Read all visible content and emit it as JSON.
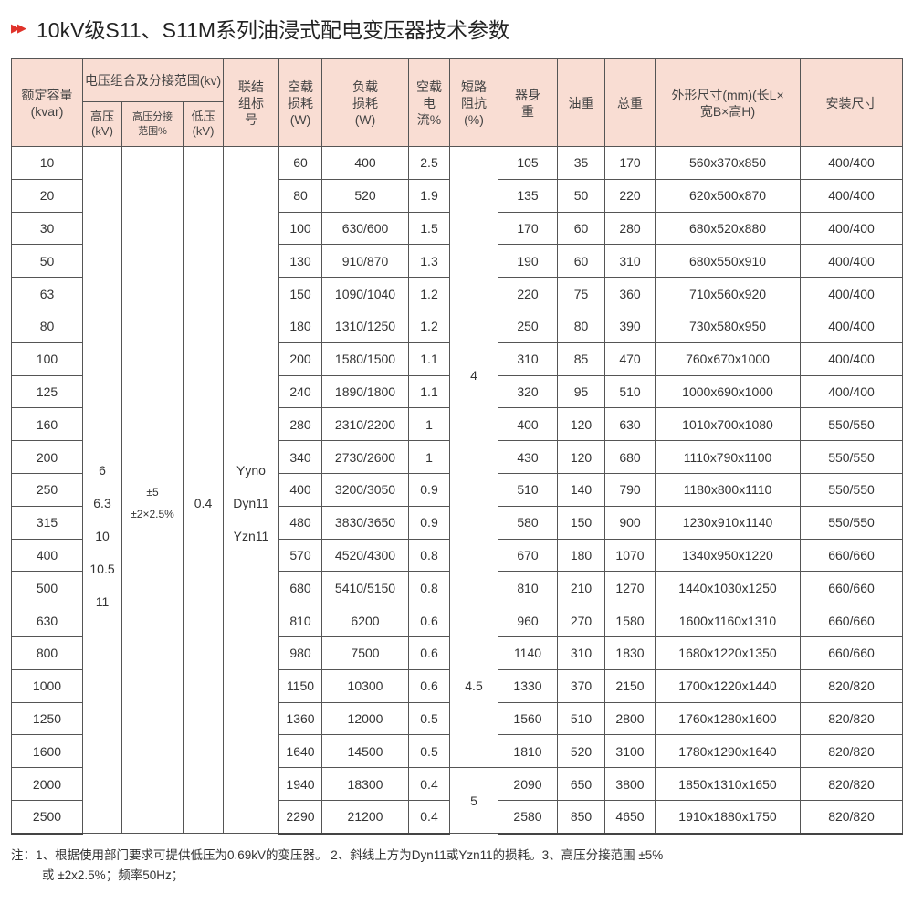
{
  "title": "10kV级S11、S11M系列油浸式配电变压器技术参数",
  "title_icon": "double-arrow-right-icon",
  "colors": {
    "header_bg": "#f9ddd3",
    "accent": "#e0322a"
  },
  "headers": {
    "capacity": "额定容量(kvar)",
    "voltage_group": "电压组合及分接范围(kv)",
    "hv": "高压(kV)",
    "tap": "高压分接范围%",
    "lv": "低压(kV)",
    "vector": "联结组标号",
    "noload_loss": "空载损耗(W)",
    "load_loss": "负载损耗(W)",
    "noload_current": "空载电流%",
    "impedance": "短路阻抗(%)",
    "body_weight": "器身重",
    "oil_weight": "油重",
    "total_weight": "总重",
    "dimensions": "外形尺寸(mm)(长L×宽B×高H)",
    "install": "安装尺寸"
  },
  "merged": {
    "hv": [
      "6",
      "6.3",
      "10",
      "10.5",
      "11"
    ],
    "tap": [
      "±5",
      "±2×2.5%"
    ],
    "lv": "0.4",
    "vector": [
      "Yyno",
      "Dyn11",
      "Yzn11"
    ],
    "impedance": [
      "4",
      "4.5",
      "5"
    ]
  },
  "rows": [
    [
      "10",
      "60",
      "400",
      "2.5",
      "105",
      "35",
      "170",
      "560x370x850",
      "400/400"
    ],
    [
      "20",
      "80",
      "520",
      "1.9",
      "135",
      "50",
      "220",
      "620x500x870",
      "400/400"
    ],
    [
      "30",
      "100",
      "630/600",
      "1.5",
      "170",
      "60",
      "280",
      "680x520x880",
      "400/400"
    ],
    [
      "50",
      "130",
      "910/870",
      "1.3",
      "190",
      "60",
      "310",
      "680x550x910",
      "400/400"
    ],
    [
      "63",
      "150",
      "1090/1040",
      "1.2",
      "220",
      "75",
      "360",
      "710x560x920",
      "400/400"
    ],
    [
      "80",
      "180",
      "1310/1250",
      "1.2",
      "250",
      "80",
      "390",
      "730x580x950",
      "400/400"
    ],
    [
      "100",
      "200",
      "1580/1500",
      "1.1",
      "310",
      "85",
      "470",
      "760x670x1000",
      "400/400"
    ],
    [
      "125",
      "240",
      "1890/1800",
      "1.1",
      "320",
      "95",
      "510",
      "1000x690x1000",
      "400/400"
    ],
    [
      "160",
      "280",
      "2310/2200",
      "1",
      "400",
      "120",
      "630",
      "1010x700x1080",
      "550/550"
    ],
    [
      "200",
      "340",
      "2730/2600",
      "1",
      "430",
      "120",
      "680",
      "1110x790x1100",
      "550/550"
    ],
    [
      "250",
      "400",
      "3200/3050",
      "0.9",
      "510",
      "140",
      "790",
      "1180x800x1110",
      "550/550"
    ],
    [
      "315",
      "480",
      "3830/3650",
      "0.9",
      "580",
      "150",
      "900",
      "1230x910x1140",
      "550/550"
    ],
    [
      "400",
      "570",
      "4520/4300",
      "0.8",
      "670",
      "180",
      "1070",
      "1340x950x1220",
      "660/660"
    ],
    [
      "500",
      "680",
      "5410/5150",
      "0.8",
      "810",
      "210",
      "1270",
      "1440x1030x1250",
      "660/660"
    ],
    [
      "630",
      "810",
      "6200",
      "0.6",
      "960",
      "270",
      "1580",
      "1600x1160x1310",
      "660/660"
    ],
    [
      "800",
      "980",
      "7500",
      "0.6",
      "1140",
      "310",
      "1830",
      "1680x1220x1350",
      "660/660"
    ],
    [
      "1000",
      "1150",
      "10300",
      "0.6",
      "1330",
      "370",
      "2150",
      "1700x1220x1440",
      "820/820"
    ],
    [
      "1250",
      "1360",
      "12000",
      "0.5",
      "1560",
      "510",
      "2800",
      "1760x1280x1600",
      "820/820"
    ],
    [
      "1600",
      "1640",
      "14500",
      "0.5",
      "1810",
      "520",
      "3100",
      "1780x1290x1640",
      "820/820"
    ],
    [
      "2000",
      "1940",
      "18300",
      "0.4",
      "2090",
      "650",
      "3800",
      "1850x1310x1650",
      "820/820"
    ],
    [
      "2500",
      "2290",
      "21200",
      "0.4",
      "2580",
      "850",
      "4650",
      "1910x1880x1750",
      "820/820"
    ]
  ],
  "note_line1": "注：1、根据使用部门要求可提供低压为0.69kV的变压器。 2、斜线上方为Dyn11或Yzn11的损耗。3、高压分接范围 ±5%",
  "note_line2": "或 ±2x2.5%；频率50Hz；"
}
